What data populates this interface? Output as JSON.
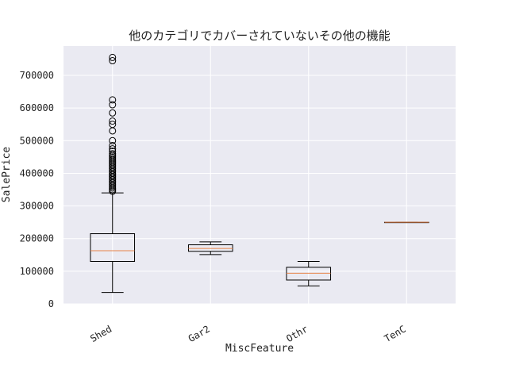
{
  "chart_data": {
    "type": "boxplot",
    "title": "他のカテゴリでカバーされていないその他の機能",
    "xlabel": "MiscFeature",
    "ylabel": "SalePrice",
    "ylim": [
      0,
      790000
    ],
    "yticks": [
      0,
      100000,
      200000,
      300000,
      400000,
      500000,
      600000,
      700000
    ],
    "grid": true,
    "categories": [
      "Shed",
      "Gar2",
      "Othr",
      "TenC"
    ],
    "boxes": [
      {
        "name": "Shed",
        "whisker_low": 35000,
        "q1": 130000,
        "median": 163000,
        "q3": 215000,
        "whisker_high": 340000,
        "outliers": [
          345000,
          350000,
          355000,
          360000,
          365000,
          370000,
          375000,
          380000,
          385000,
          390000,
          395000,
          400000,
          405000,
          410000,
          415000,
          420000,
          425000,
          430000,
          435000,
          440000,
          445000,
          450000,
          455000,
          460000,
          468000,
          475000,
          485000,
          500000,
          530000,
          550000,
          560000,
          585000,
          610000,
          625000,
          745000,
          755000
        ]
      },
      {
        "name": "Gar2",
        "whisker_low": 151000,
        "q1": 161000,
        "median": 170000,
        "q3": 181000,
        "whisker_high": 190000,
        "outliers": []
      },
      {
        "name": "Othr",
        "whisker_low": 55000,
        "q1": 73000,
        "median": 94000,
        "q3": 112000,
        "whisker_high": 130000,
        "outliers": []
      },
      {
        "name": "TenC",
        "whisker_low": 250000,
        "q1": 250000,
        "median": 250000,
        "q3": 250000,
        "whisker_high": 250000,
        "outliers": []
      }
    ],
    "colors": {
      "plot_background": "#eaeaf2",
      "grid": "#ffffff",
      "box": "#000000",
      "median": "#e8844a"
    }
  }
}
